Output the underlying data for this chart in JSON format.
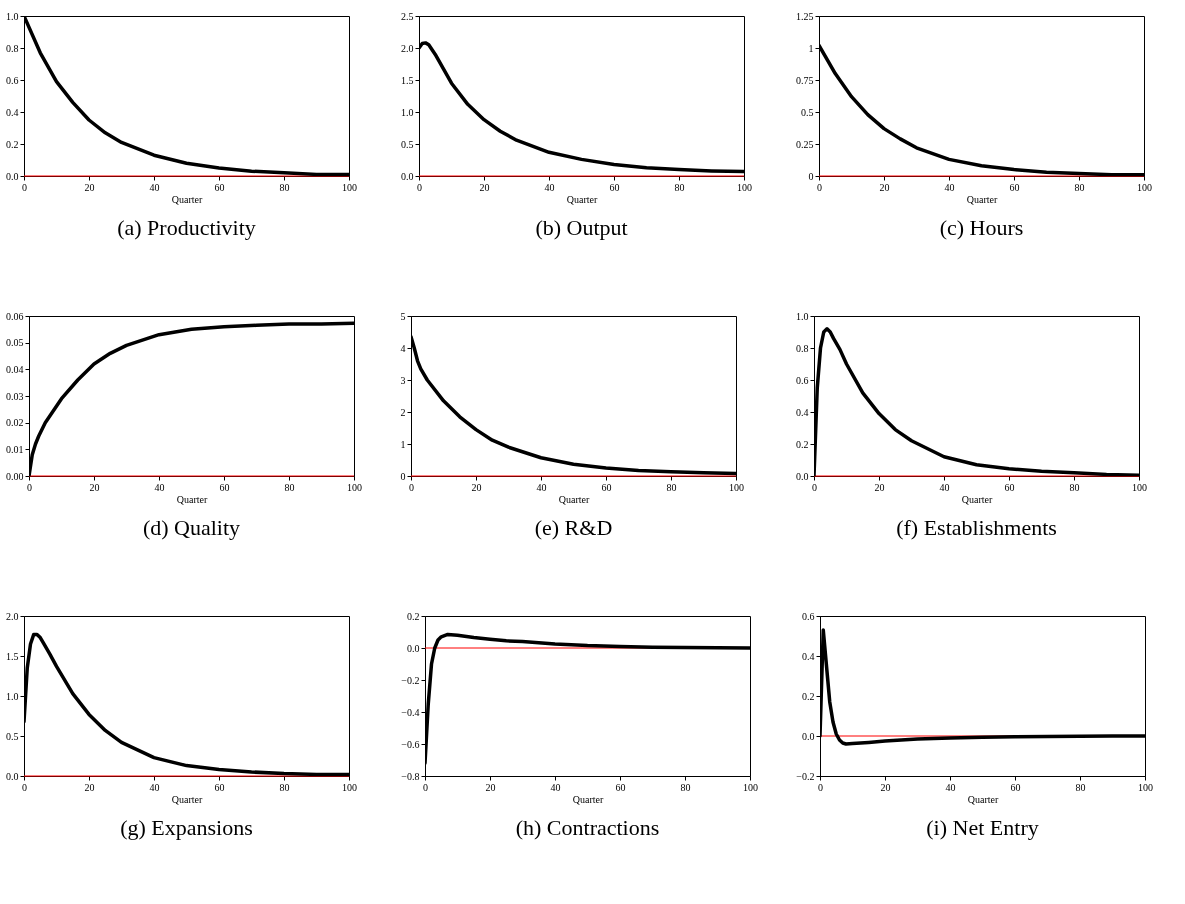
{
  "chart_data": [
    {
      "type": "line",
      "title": "(a) Productivity",
      "xlabel": "Quarter",
      "x": [
        0,
        5,
        10,
        15,
        20,
        25,
        30,
        40,
        50,
        60,
        70,
        80,
        90,
        100
      ],
      "xlim": [
        0,
        100
      ],
      "xticks": [
        0,
        20,
        40,
        60,
        80,
        100
      ],
      "ylim": [
        0,
        1
      ],
      "yticks": [
        {
          "value": 0,
          "label": "0.0"
        },
        {
          "value": 0.2,
          "label": "0.2"
        },
        {
          "value": 0.4,
          "label": "0.4"
        },
        {
          "value": 0.6,
          "label": "0.6"
        },
        {
          "value": 0.8,
          "label": "0.8"
        },
        {
          "value": 1,
          "label": "1.0"
        }
      ],
      "ref_lines": [
        {
          "axis": "y",
          "value": 0,
          "color": "#ff0000"
        }
      ],
      "series": [
        {
          "color": "#000000",
          "values": [
            1.0,
            0.77,
            0.59,
            0.46,
            0.35,
            0.27,
            0.21,
            0.13,
            0.08,
            0.05,
            0.03,
            0.02,
            0.01,
            0.01
          ]
        }
      ]
    },
    {
      "type": "line",
      "title": "(b) Output",
      "xlabel": "Quarter",
      "x": [
        0,
        1,
        2,
        3,
        5,
        10,
        15,
        20,
        25,
        30,
        40,
        50,
        60,
        70,
        80,
        90,
        100
      ],
      "xlim": [
        0,
        100
      ],
      "xticks": [
        0,
        20,
        40,
        60,
        80,
        100
      ],
      "ylim": [
        0,
        2.5
      ],
      "yticks": [
        {
          "value": 0,
          "label": "0.0"
        },
        {
          "value": 0.5,
          "label": "0.5"
        },
        {
          "value": 1,
          "label": "1.0"
        },
        {
          "value": 1.5,
          "label": "1.5"
        },
        {
          "value": 2,
          "label": "2.0"
        },
        {
          "value": 2.5,
          "label": "2.5"
        }
      ],
      "ref_lines": [
        {
          "axis": "y",
          "value": 0,
          "color": "#ff0000"
        }
      ],
      "series": [
        {
          "color": "#000000",
          "values": [
            2.0,
            2.07,
            2.08,
            2.05,
            1.9,
            1.45,
            1.12,
            0.88,
            0.7,
            0.56,
            0.37,
            0.26,
            0.18,
            0.13,
            0.1,
            0.08,
            0.07
          ]
        }
      ]
    },
    {
      "type": "line",
      "title": "(c) Hours",
      "xlabel": "Quarter",
      "x": [
        0,
        5,
        10,
        15,
        20,
        25,
        30,
        40,
        50,
        60,
        70,
        80,
        90,
        100
      ],
      "xlim": [
        0,
        100
      ],
      "xticks": [
        0,
        20,
        40,
        60,
        80,
        100
      ],
      "ylim": [
        0,
        1.25
      ],
      "yticks": [
        0,
        0.25,
        0.5,
        0.75,
        1,
        1.25
      ],
      "ref_lines": [
        {
          "axis": "y",
          "value": 0,
          "color": "#ff0000"
        }
      ],
      "series": [
        {
          "color": "#000000",
          "values": [
            1.02,
            0.8,
            0.62,
            0.48,
            0.37,
            0.29,
            0.22,
            0.13,
            0.08,
            0.05,
            0.03,
            0.02,
            0.01,
            0.01
          ]
        }
      ]
    },
    {
      "type": "line",
      "title": "(d) Quality",
      "xlabel": "Quarter",
      "x": [
        0,
        1,
        2,
        3,
        5,
        10,
        15,
        20,
        25,
        30,
        40,
        50,
        60,
        70,
        80,
        90,
        100
      ],
      "xlim": [
        0,
        100
      ],
      "xticks": [
        0,
        20,
        40,
        60,
        80,
        100
      ],
      "ylim": [
        0,
        0.06
      ],
      "yticks": [
        {
          "value": 0,
          "label": "0.00"
        },
        {
          "value": 0.01,
          "label": "0.01"
        },
        {
          "value": 0.02,
          "label": "0.02"
        },
        {
          "value": 0.03,
          "label": "0.03"
        },
        {
          "value": 0.04,
          "label": "0.04"
        },
        {
          "value": 0.05,
          "label": "0.05"
        },
        {
          "value": 0.06,
          "label": "0.06"
        }
      ],
      "ref_lines": [
        {
          "axis": "y",
          "value": 0,
          "color": "#ff0000"
        }
      ],
      "series": [
        {
          "color": "#000000",
          "values": [
            0,
            0.008,
            0.012,
            0.015,
            0.02,
            0.029,
            0.036,
            0.042,
            0.046,
            0.049,
            0.053,
            0.055,
            0.056,
            0.0565,
            0.057,
            0.057,
            0.0573
          ]
        }
      ]
    },
    {
      "type": "line",
      "title": "(e) R&D",
      "xlabel": "Quarter",
      "x": [
        0,
        1,
        2,
        3,
        5,
        10,
        15,
        20,
        25,
        30,
        40,
        50,
        60,
        70,
        80,
        90,
        100
      ],
      "xlim": [
        0,
        100
      ],
      "xticks": [
        0,
        20,
        40,
        60,
        80,
        100
      ],
      "ylim": [
        0,
        5
      ],
      "yticks": [
        0,
        1,
        2,
        3,
        4,
        5
      ],
      "ref_lines": [
        {
          "axis": "y",
          "value": 0,
          "color": "#ff0000"
        }
      ],
      "series": [
        {
          "color": "#000000",
          "values": [
            4.35,
            4.0,
            3.6,
            3.35,
            3.0,
            2.35,
            1.85,
            1.45,
            1.12,
            0.9,
            0.57,
            0.37,
            0.25,
            0.17,
            0.13,
            0.1,
            0.08
          ]
        }
      ]
    },
    {
      "type": "line",
      "title": "(f) Establishments",
      "xlabel": "Quarter",
      "x": [
        0,
        1,
        2,
        3,
        4,
        5,
        6,
        8,
        10,
        15,
        20,
        25,
        30,
        40,
        50,
        60,
        70,
        80,
        90,
        100
      ],
      "xlim": [
        0,
        100
      ],
      "xticks": [
        0,
        20,
        40,
        60,
        80,
        100
      ],
      "ylim": [
        0,
        1
      ],
      "yticks": [
        {
          "value": 0,
          "label": "0.0"
        },
        {
          "value": 0.2,
          "label": "0.2"
        },
        {
          "value": 0.4,
          "label": "0.4"
        },
        {
          "value": 0.6,
          "label": "0.6"
        },
        {
          "value": 0.8,
          "label": "0.8"
        },
        {
          "value": 1,
          "label": "1.0"
        }
      ],
      "ref_lines": [
        {
          "axis": "y",
          "value": 0,
          "color": "#ff0000"
        }
      ],
      "series": [
        {
          "color": "#000000",
          "values": [
            0,
            0.55,
            0.8,
            0.9,
            0.92,
            0.9,
            0.86,
            0.79,
            0.7,
            0.52,
            0.39,
            0.29,
            0.22,
            0.12,
            0.07,
            0.045,
            0.03,
            0.02,
            0.01,
            0.005
          ]
        }
      ]
    },
    {
      "type": "line",
      "title": "(g) Expansions",
      "xlabel": "Quarter",
      "x": [
        0,
        1,
        2,
        3,
        4,
        5,
        6,
        8,
        10,
        15,
        20,
        25,
        30,
        40,
        50,
        60,
        70,
        80,
        90,
        100
      ],
      "xlim": [
        0,
        100
      ],
      "xticks": [
        0,
        20,
        40,
        60,
        80,
        100
      ],
      "ylim": [
        0,
        2
      ],
      "yticks": [
        {
          "value": 0,
          "label": "0.0"
        },
        {
          "value": 0.5,
          "label": "0.5"
        },
        {
          "value": 1,
          "label": "1.0"
        },
        {
          "value": 1.5,
          "label": "1.5"
        },
        {
          "value": 2,
          "label": "2.0"
        }
      ],
      "ref_lines": [
        {
          "axis": "y",
          "value": 0,
          "color": "#ff0000"
        }
      ],
      "series": [
        {
          "color": "#000000",
          "values": [
            0.68,
            1.35,
            1.65,
            1.77,
            1.77,
            1.73,
            1.66,
            1.52,
            1.37,
            1.03,
            0.77,
            0.57,
            0.42,
            0.23,
            0.13,
            0.08,
            0.05,
            0.03,
            0.02,
            0.02
          ]
        }
      ]
    },
    {
      "type": "line",
      "title": "(h) Contractions",
      "xlabel": "Quarter",
      "x": [
        0,
        1,
        2,
        3,
        4,
        5,
        7,
        10,
        15,
        20,
        25,
        30,
        40,
        50,
        60,
        70,
        80,
        90,
        100
      ],
      "xlim": [
        0,
        100
      ],
      "xticks": [
        0,
        20,
        40,
        60,
        80,
        100
      ],
      "ylim": [
        -0.8,
        0.2
      ],
      "yticks": [
        {
          "value": -0.8,
          "label": "−0.8"
        },
        {
          "value": -0.6,
          "label": "−0.6"
        },
        {
          "value": -0.4,
          "label": "−0.4"
        },
        {
          "value": -0.2,
          "label": "−0.2"
        },
        {
          "value": 0,
          "label": "0.0"
        },
        {
          "value": 0.2,
          "label": "0.2"
        }
      ],
      "ref_lines": [
        {
          "axis": "y",
          "value": 0,
          "color": "#ff0000"
        }
      ],
      "series": [
        {
          "color": "#000000",
          "values": [
            -0.72,
            -0.35,
            -0.1,
            0.0,
            0.05,
            0.07,
            0.085,
            0.08,
            0.065,
            0.055,
            0.045,
            0.04,
            0.025,
            0.015,
            0.01,
            0.005,
            0.003,
            0.001,
            0.0
          ]
        }
      ]
    },
    {
      "type": "line",
      "title": "(i) Net Entry",
      "xlabel": "Quarter",
      "x": [
        0,
        1,
        2,
        3,
        4,
        5,
        6,
        7,
        8,
        10,
        15,
        20,
        30,
        40,
        50,
        60,
        70,
        80,
        90,
        100
      ],
      "xlim": [
        0,
        100
      ],
      "xticks": [
        0,
        20,
        40,
        60,
        80,
        100
      ],
      "ylim": [
        -0.2,
        0.6
      ],
      "yticks": [
        {
          "value": -0.2,
          "label": "−0.2"
        },
        {
          "value": 0,
          "label": "0.0"
        },
        {
          "value": 0.2,
          "label": "0.2"
        },
        {
          "value": 0.4,
          "label": "0.4"
        },
        {
          "value": 0.6,
          "label": "0.6"
        }
      ],
      "ref_lines": [
        {
          "axis": "y",
          "value": 0,
          "color": "#ff0000"
        }
      ],
      "series": [
        {
          "color": "#000000",
          "values": [
            0,
            0.53,
            0.35,
            0.17,
            0.07,
            0.01,
            -0.02,
            -0.035,
            -0.04,
            -0.038,
            -0.032,
            -0.025,
            -0.015,
            -0.01,
            -0.006,
            -0.004,
            -0.002,
            -0.001,
            0,
            0
          ]
        }
      ]
    }
  ]
}
